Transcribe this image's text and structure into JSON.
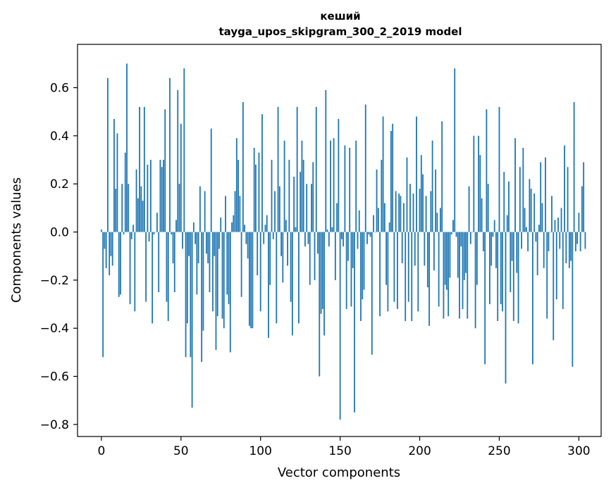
{
  "chart_data": {
    "type": "bar",
    "title": "кеший",
    "subtitle": "tayga_upos_skipgram_300_2_2019 model",
    "xlabel": "Vector components",
    "ylabel": "Components values",
    "xlim": [
      -15,
      314
    ],
    "ylim": [
      -0.85,
      0.78
    ],
    "xticks": [
      0,
      50,
      100,
      150,
      200,
      250,
      300
    ],
    "xtick_labels": [
      "0",
      "50",
      "100",
      "150",
      "200",
      "250",
      "300"
    ],
    "yticks": [
      0.6,
      0.4,
      0.2,
      0.0,
      -0.2,
      -0.4,
      -0.6,
      -0.8
    ],
    "ytick_labels": [
      "0.6",
      "0.4",
      "0.2",
      "0.0",
      "−0.2",
      "−0.4",
      "−0.6",
      "−0.8"
    ],
    "grid": false,
    "bar_color": "#1f77b4",
    "values": [
      0.01,
      -0.52,
      -0.07,
      -0.15,
      0.64,
      -0.18,
      -0.1,
      -0.14,
      0.47,
      0.18,
      0.41,
      -0.27,
      -0.26,
      0.2,
      -0.01,
      0.33,
      0.7,
      0.2,
      -0.3,
      -0.03,
      0.03,
      -0.33,
      0.26,
      0.14,
      0.52,
      0.19,
      0.13,
      0.52,
      -0.29,
      0.28,
      -0.04,
      0.3,
      -0.38,
      -0.01,
      0.0,
      0.08,
      -0.25,
      0.3,
      0.27,
      0.3,
      0.51,
      -0.29,
      -0.37,
      0.64,
      -0.01,
      -0.13,
      -0.25,
      0.05,
      0.59,
      0.2,
      0.45,
      -0.07,
      0.68,
      -0.52,
      -0.38,
      -0.1,
      -0.52,
      -0.73,
      0.04,
      -0.05,
      -0.26,
      -0.13,
      0.19,
      -0.54,
      -0.41,
      0.17,
      -0.09,
      -0.13,
      -0.25,
      0.43,
      -0.33,
      -0.1,
      -0.49,
      -0.35,
      -0.07,
      0.06,
      -0.36,
      -0.4,
      0.15,
      -0.26,
      -0.3,
      -0.5,
      0.04,
      0.07,
      0.17,
      0.39,
      0.3,
      0.15,
      -0.27,
      0.54,
      0.03,
      -0.05,
      -0.11,
      -0.39,
      -0.4,
      -0.4,
      0.35,
      0.28,
      -0.18,
      0.33,
      -0.33,
      0.49,
      -0.05,
      0.03,
      0.07,
      -0.44,
      -0.22,
      0.3,
      -0.03,
      0.17,
      -0.38,
      0.52,
      0.19,
      -0.1,
      -0.21,
      0.38,
      0.05,
      -0.14,
      0.3,
      -0.29,
      -0.43,
      0.23,
      0.02,
      0.52,
      -0.38,
      0.25,
      0.38,
      0.3,
      -0.06,
      0.2,
      -0.05,
      -0.22,
      0.2,
      0.29,
      -0.2,
      0.52,
      -0.09,
      -0.6,
      -0.34,
      -0.32,
      -0.43,
      0.59,
      0.01,
      -0.06,
      0.38,
      0.02,
      0.39,
      -0.2,
      0.12,
      0.47,
      -0.78,
      -0.03,
      -0.06,
      0.36,
      -0.32,
      -0.12,
      0.35,
      -0.31,
      -0.15,
      -0.75,
      0.38,
      -0.07,
      0.09,
      -0.37,
      -0.28,
      -0.24,
      0.53,
      -0.05,
      -0.01,
      -0.02,
      -0.51,
      0.07,
      0.0,
      0.26,
      0.1,
      -0.35,
      0.3,
      0.48,
      0.12,
      -0.22,
      -0.33,
      0.04,
      0.42,
      0.45,
      -0.29,
      0.17,
      -0.32,
      0.16,
      0.15,
      -0.13,
      0.12,
      -0.37,
      0.31,
      -0.29,
      0.2,
      -0.37,
      0.16,
      -0.14,
      0.48,
      -0.33,
      0.18,
      0.32,
      0.24,
      -0.14,
      0.15,
      -0.23,
      -0.39,
      0.17,
      0.38,
      -0.16,
      0.26,
      0.08,
      -0.31,
      0.1,
      0.46,
      -0.36,
      -0.22,
      -0.24,
      -0.35,
      -0.19,
      -0.01,
      0.05,
      0.68,
      -0.02,
      -0.19,
      -0.36,
      -0.06,
      -0.32,
      -0.2,
      -0.17,
      -0.36,
      0.19,
      -0.05,
      0.0,
      0.4,
      -0.4,
      -0.22,
      0.4,
      0.32,
      0.14,
      -0.08,
      -0.55,
      0.51,
      0.2,
      -0.3,
      -0.14,
      -0.02,
      0.05,
      -0.15,
      -0.37,
      0.52,
      -0.3,
      -0.33,
      0.25,
      -0.63,
      0.07,
      0.21,
      -0.25,
      -0.12,
      -0.37,
      0.39,
      -0.17,
      -0.38,
      0.27,
      -0.07,
      0.35,
      0.1,
      0.02,
      -0.08,
      0.22,
      0.18,
      -0.55,
      0.16,
      -0.04,
      -0.18,
      0.03,
      0.29,
      0.12,
      -0.15,
      0.31,
      -0.36,
      -0.08,
      0.0,
      0.15,
      -0.45,
      0.05,
      -0.28,
      0.06,
      -0.07,
      0.1,
      -0.32,
      0.36,
      -0.13,
      0.27,
      -0.15,
      -0.12,
      -0.56,
      0.54,
      -0.08,
      -0.05,
      0.08,
      -0.08,
      0.19,
      0.29,
      -0.07
    ]
  }
}
